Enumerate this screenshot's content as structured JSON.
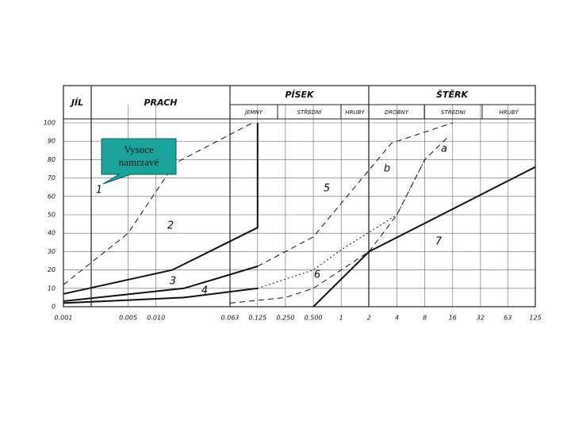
{
  "chart_data": {
    "type": "line",
    "xscale": "log",
    "xlim": [
      0.001,
      125
    ],
    "ylim": [
      0,
      100
    ],
    "xticks": [
      {
        "value": 0.001,
        "label": "0.001"
      },
      {
        "value": 0.005,
        "label": "0.005"
      },
      {
        "value": 0.01,
        "label": "0.010"
      },
      {
        "value": 0.063,
        "label": "0.063"
      },
      {
        "value": 0.125,
        "label": "0.125"
      },
      {
        "value": 0.25,
        "label": "0.250"
      },
      {
        "value": 0.5,
        "label": "0.500"
      },
      1,
      2,
      4,
      8,
      16,
      32,
      63,
      125
    ],
    "yticks": [
      0,
      10,
      20,
      30,
      40,
      50,
      60,
      70,
      80,
      90,
      100
    ],
    "grid": true,
    "header_groups": [
      "JÍL",
      "PRACH",
      "PÍSEK",
      "ŠTĚRK"
    ],
    "header_subgroups": [
      "JEMNÝ",
      "STŘEDNÍ",
      "HRUBÝ",
      "DROBNÝ",
      "STŘEDNÍ",
      "HRUBÝ"
    ],
    "annotation": "Vysoce namrzavé",
    "series": [
      {
        "name": "1",
        "color": "#111111",
        "style": "dashed",
        "x": [
          0.001,
          0.005,
          0.016,
          0.11
        ],
        "values": [
          12,
          40,
          78,
          100
        ]
      },
      {
        "name": "2",
        "color": "#111111",
        "style": "solid",
        "x": [
          0.001,
          0.015,
          0.125,
          0.125
        ],
        "values": [
          7,
          20,
          43,
          100
        ]
      },
      {
        "name": "3",
        "color": "#111111",
        "style": "solid",
        "x": [
          0.001,
          0.02,
          0.125
        ],
        "values": [
          3,
          10,
          22
        ]
      },
      {
        "name": "4",
        "color": "#111111",
        "style": "solid",
        "x": [
          0.001,
          0.02,
          0.125
        ],
        "values": [
          2,
          5,
          10
        ]
      },
      {
        "name": "5",
        "color": "#111111",
        "style": "dashed",
        "x": [
          0.125,
          0.5,
          3.5,
          16
        ],
        "values": [
          22,
          38,
          89,
          100
        ]
      },
      {
        "name": "6",
        "color": "#111111",
        "style": "dashed",
        "x": [
          0.063,
          0.25,
          0.5,
          1,
          2
        ],
        "values": [
          2,
          5,
          10,
          20,
          30
        ]
      },
      {
        "name": "7",
        "color": "#111111",
        "style": "solid",
        "x": [
          0.5,
          2,
          125
        ],
        "values": [
          0,
          30,
          76
        ]
      },
      {
        "name": "a",
        "color": "#111111",
        "style": "dashed",
        "x": [
          2,
          4,
          8,
          14
        ],
        "values": [
          30,
          50,
          80,
          92
        ]
      },
      {
        "name": "b",
        "color": "#111111",
        "style": "dotted",
        "x": [
          0.125,
          0.5,
          1,
          4,
          8
        ],
        "values": [
          10,
          20,
          31,
          50,
          80
        ]
      }
    ]
  }
}
